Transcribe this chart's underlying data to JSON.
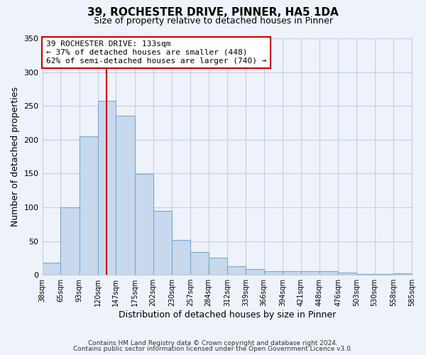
{
  "title": "39, ROCHESTER DRIVE, PINNER, HA5 1DA",
  "subtitle": "Size of property relative to detached houses in Pinner",
  "xlabel": "Distribution of detached houses by size in Pinner",
  "ylabel": "Number of detached properties",
  "bar_color": "#c8d9ed",
  "bar_edge_color": "#7ba7d0",
  "background_color": "#eef2fa",
  "grid_color": "#c5cfe0",
  "vline_x": 133,
  "vline_color": "#cc0000",
  "bin_edges": [
    38,
    65,
    93,
    120,
    147,
    175,
    202,
    230,
    257,
    284,
    312,
    339,
    366,
    394,
    421,
    448,
    476,
    503,
    530,
    558,
    585
  ],
  "bar_heights": [
    18,
    100,
    205,
    258,
    235,
    149,
    95,
    52,
    34,
    25,
    13,
    8,
    5,
    5,
    5,
    5,
    3,
    1,
    1,
    2
  ],
  "xlim": [
    38,
    585
  ],
  "ylim": [
    0,
    350
  ],
  "yticks": [
    0,
    50,
    100,
    150,
    200,
    250,
    300,
    350
  ],
  "xtick_labels": [
    "38sqm",
    "65sqm",
    "93sqm",
    "120sqm",
    "147sqm",
    "175sqm",
    "202sqm",
    "230sqm",
    "257sqm",
    "284sqm",
    "312sqm",
    "339sqm",
    "366sqm",
    "394sqm",
    "421sqm",
    "448sqm",
    "476sqm",
    "503sqm",
    "530sqm",
    "558sqm",
    "585sqm"
  ],
  "annotation_title": "39 ROCHESTER DRIVE: 133sqm",
  "annotation_line1": "← 37% of detached houses are smaller (448)",
  "annotation_line2": "62% of semi-detached houses are larger (740) →",
  "footer1": "Contains HM Land Registry data © Crown copyright and database right 2024.",
  "footer2": "Contains public sector information licensed under the Open Government Licence v3.0."
}
